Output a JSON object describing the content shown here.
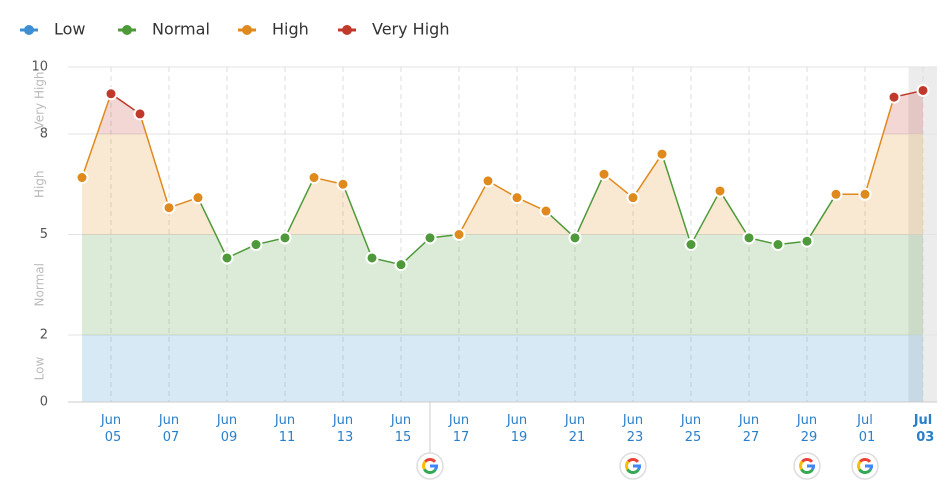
{
  "chart_data": {
    "type": "line",
    "categories": [
      null,
      "Jun 05",
      null,
      "Jun 07",
      null,
      "Jun 09",
      null,
      "Jun 11",
      null,
      "Jun 13",
      null,
      "Jun 15",
      null,
      "Jun 17",
      null,
      "Jun 19",
      null,
      "Jun 21",
      null,
      "Jun 23",
      null,
      "Jun 25",
      null,
      "Jun 27",
      null,
      "Jun 29",
      null,
      "Jul 01",
      null,
      "Jul 03"
    ],
    "values": [
      6.7,
      9.2,
      8.6,
      5.8,
      6.1,
      4.3,
      4.7,
      4.9,
      6.7,
      6.5,
      4.3,
      4.1,
      4.9,
      5.0,
      6.6,
      6.1,
      5.7,
      4.9,
      6.8,
      6.1,
      7.4,
      4.7,
      6.3,
      4.9,
      4.7,
      4.8,
      6.2,
      6.2,
      9.1,
      9.3
    ],
    "ylim": [
      0,
      10
    ],
    "yticks": [
      0,
      2,
      5,
      8,
      10
    ],
    "bands": [
      {
        "name": "Low",
        "color": "#3d8fd1",
        "range": [
          0,
          2
        ]
      },
      {
        "name": "Normal",
        "color": "#4e9a3a",
        "range": [
          2,
          5
        ]
      },
      {
        "name": "High",
        "color": "#e08a1e",
        "range": [
          5,
          8
        ]
      },
      {
        "name": "Very High",
        "color": "#c0392b",
        "range": [
          8,
          10
        ]
      }
    ],
    "google_updates": [
      12,
      19,
      25,
      27
    ],
    "grid": true
  }
}
